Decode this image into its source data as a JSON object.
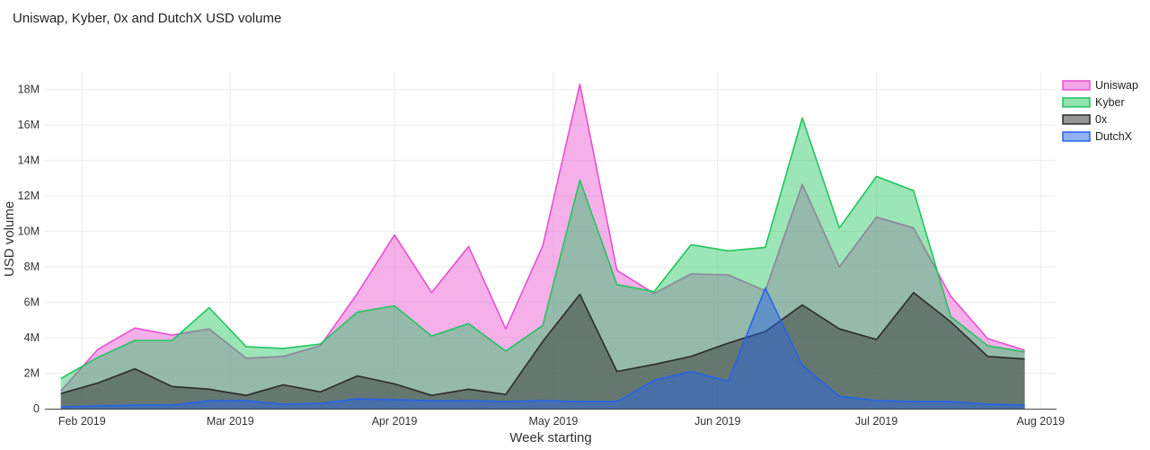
{
  "chart_data": {
    "type": "area",
    "title": "Uniswap, Kyber, 0x and DutchX USD volume",
    "xlabel": "Week starting",
    "ylabel": "USD volume",
    "ylim": [
      0,
      19000000
    ],
    "x_ticks": [
      "Feb 2019",
      "Mar 2019",
      "Apr 2019",
      "May 2019",
      "Jun 2019",
      "Jul 2019",
      "Aug 2019"
    ],
    "y_ticks": [
      "0",
      "2M",
      "4M",
      "6M",
      "8M",
      "10M",
      "12M",
      "14M",
      "16M",
      "18M"
    ],
    "y_tick_values": [
      0,
      2000000,
      4000000,
      6000000,
      8000000,
      10000000,
      12000000,
      14000000,
      16000000,
      18000000
    ],
    "x": [
      "2019-01-28",
      "2019-02-04",
      "2019-02-11",
      "2019-02-18",
      "2019-02-25",
      "2019-03-04",
      "2019-03-11",
      "2019-03-18",
      "2019-03-25",
      "2019-04-01",
      "2019-04-08",
      "2019-04-15",
      "2019-04-22",
      "2019-04-29",
      "2019-05-06",
      "2019-05-13",
      "2019-05-20",
      "2019-05-27",
      "2019-06-03",
      "2019-06-10",
      "2019-06-17",
      "2019-06-24",
      "2019-07-01",
      "2019-07-08",
      "2019-07-15",
      "2019-07-22",
      "2019-07-29"
    ],
    "series": [
      {
        "name": "Uniswap",
        "color": "#e84fd1",
        "values": [
          1000000,
          3350000,
          4550000,
          4150000,
          4500000,
          2850000,
          2950000,
          3550000,
          6500000,
          9800000,
          6550000,
          9150000,
          4500000,
          9200000,
          18300000,
          7800000,
          6500000,
          7600000,
          7550000,
          6650000,
          12650000,
          8000000,
          10800000,
          10200000,
          6350000,
          3950000,
          3300000
        ]
      },
      {
        "name": "Kyber",
        "color": "#22c55e",
        "values": [
          1700000,
          2900000,
          3850000,
          3850000,
          5700000,
          3500000,
          3400000,
          3650000,
          5450000,
          5800000,
          4100000,
          4800000,
          3250000,
          4700000,
          12900000,
          7000000,
          6600000,
          9250000,
          8900000,
          9100000,
          16400000,
          10200000,
          13100000,
          12300000,
          5200000,
          3550000,
          3200000
        ]
      },
      {
        "name": "0x",
        "color": "#2b2b2b",
        "values": [
          850000,
          1450000,
          2250000,
          1250000,
          1100000,
          750000,
          1350000,
          950000,
          1850000,
          1400000,
          750000,
          1100000,
          800000,
          3800000,
          6450000,
          2100000,
          2500000,
          2950000,
          3700000,
          4350000,
          5850000,
          4500000,
          3900000,
          6550000,
          4900000,
          2950000,
          2800000
        ]
      },
      {
        "name": "DutchX",
        "color": "#2563eb",
        "values": [
          100000,
          150000,
          200000,
          200000,
          450000,
          450000,
          250000,
          300000,
          550000,
          500000,
          450000,
          450000,
          400000,
          450000,
          400000,
          400000,
          1600000,
          2100000,
          1550000,
          6800000,
          2450000,
          700000,
          450000,
          400000,
          400000,
          250000,
          200000
        ]
      }
    ],
    "legend": "top-right",
    "grid": true
  }
}
